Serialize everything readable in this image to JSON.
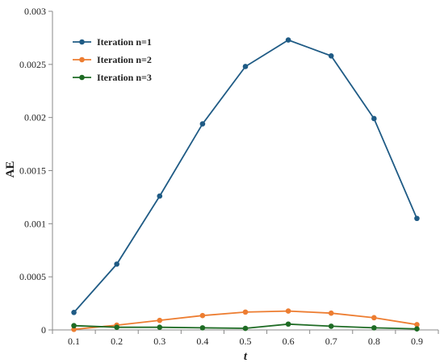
{
  "chart_data": {
    "type": "line",
    "title": "",
    "xlabel": "t",
    "ylabel": "AE",
    "x": [
      0.1,
      0.2,
      0.3,
      0.4,
      0.5,
      0.6,
      0.7,
      0.8,
      0.9
    ],
    "x_tick_labels": [
      "0.1",
      "0.2",
      "0.3",
      "0.4",
      "0.5",
      "0.6",
      "0.7",
      "0.8",
      "0.9"
    ],
    "ylim": [
      0,
      0.003
    ],
    "y_ticks": [
      0,
      0.0005,
      0.001,
      0.0015,
      0.002,
      0.0025,
      0.003
    ],
    "y_tick_labels": [
      "0",
      "0.0005",
      "0.001",
      "0.0015",
      "0.002",
      "0.0025",
      "0.003"
    ],
    "grid": false,
    "legend_position": "top-left",
    "series": [
      {
        "name": "Iteration n=1",
        "color": "#1f5b85",
        "values": [
          0.000165,
          0.00062,
          0.00126,
          0.00194,
          0.00248,
          0.00273,
          0.00258,
          0.00199,
          0.00105
        ]
      },
      {
        "name": "Iteration n=2",
        "color": "#ed7d31",
        "values": [
          5e-06,
          4.5e-05,
          9e-05,
          0.000135,
          0.000168,
          0.000178,
          0.000158,
          0.000115,
          5e-05
        ]
      },
      {
        "name": "Iteration n=3",
        "color": "#1e6b24",
        "values": [
          4e-05,
          2.5e-05,
          2.5e-05,
          2e-05,
          1.5e-05,
          5.5e-05,
          3.5e-05,
          2e-05,
          1e-05
        ]
      }
    ]
  }
}
